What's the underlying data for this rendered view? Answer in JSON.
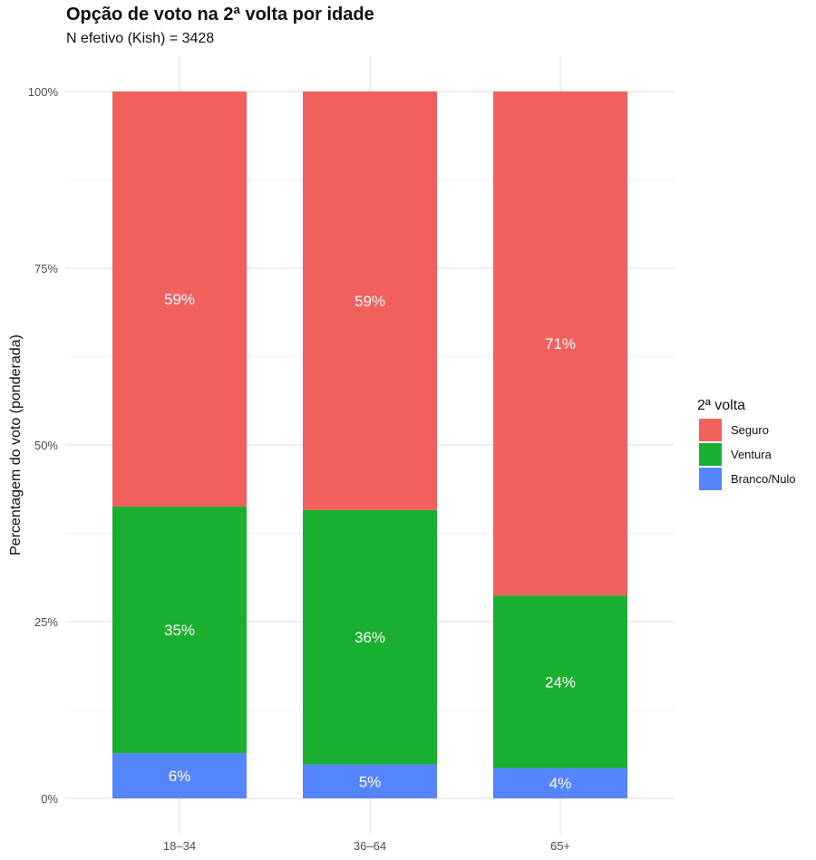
{
  "chart_data": {
    "type": "bar",
    "stacked": true,
    "title": "Opção de voto na 2ª volta por idade",
    "subtitle": "N efetivo (Kish) = 3428",
    "xlabel": "",
    "ylabel": "Percentagem do voto (ponderada)",
    "ylim": [
      0,
      100
    ],
    "y_ticks": [
      "0%",
      "25%",
      "50%",
      "75%",
      "100%"
    ],
    "categories": [
      "18–34",
      "36–64",
      "65+"
    ],
    "series": [
      {
        "name": "Branco/Nulo",
        "color": "#5485ff",
        "values": [
          6.4,
          4.8,
          4.3
        ],
        "labels": [
          "6%",
          "5%",
          "4%"
        ]
      },
      {
        "name": "Ventura",
        "color": "#1aaf2f",
        "values": [
          34.9,
          36.0,
          24.4
        ],
        "labels": [
          "35%",
          "36%",
          "24%"
        ]
      },
      {
        "name": "Seguro",
        "color": "#f2605d",
        "values": [
          58.7,
          59.2,
          71.3
        ],
        "labels": [
          "59%",
          "59%",
          "71%"
        ]
      }
    ],
    "legend": {
      "title": "2ª volta",
      "position": "right",
      "order": [
        "Seguro",
        "Ventura",
        "Branco/Nulo"
      ]
    },
    "grid": true
  }
}
